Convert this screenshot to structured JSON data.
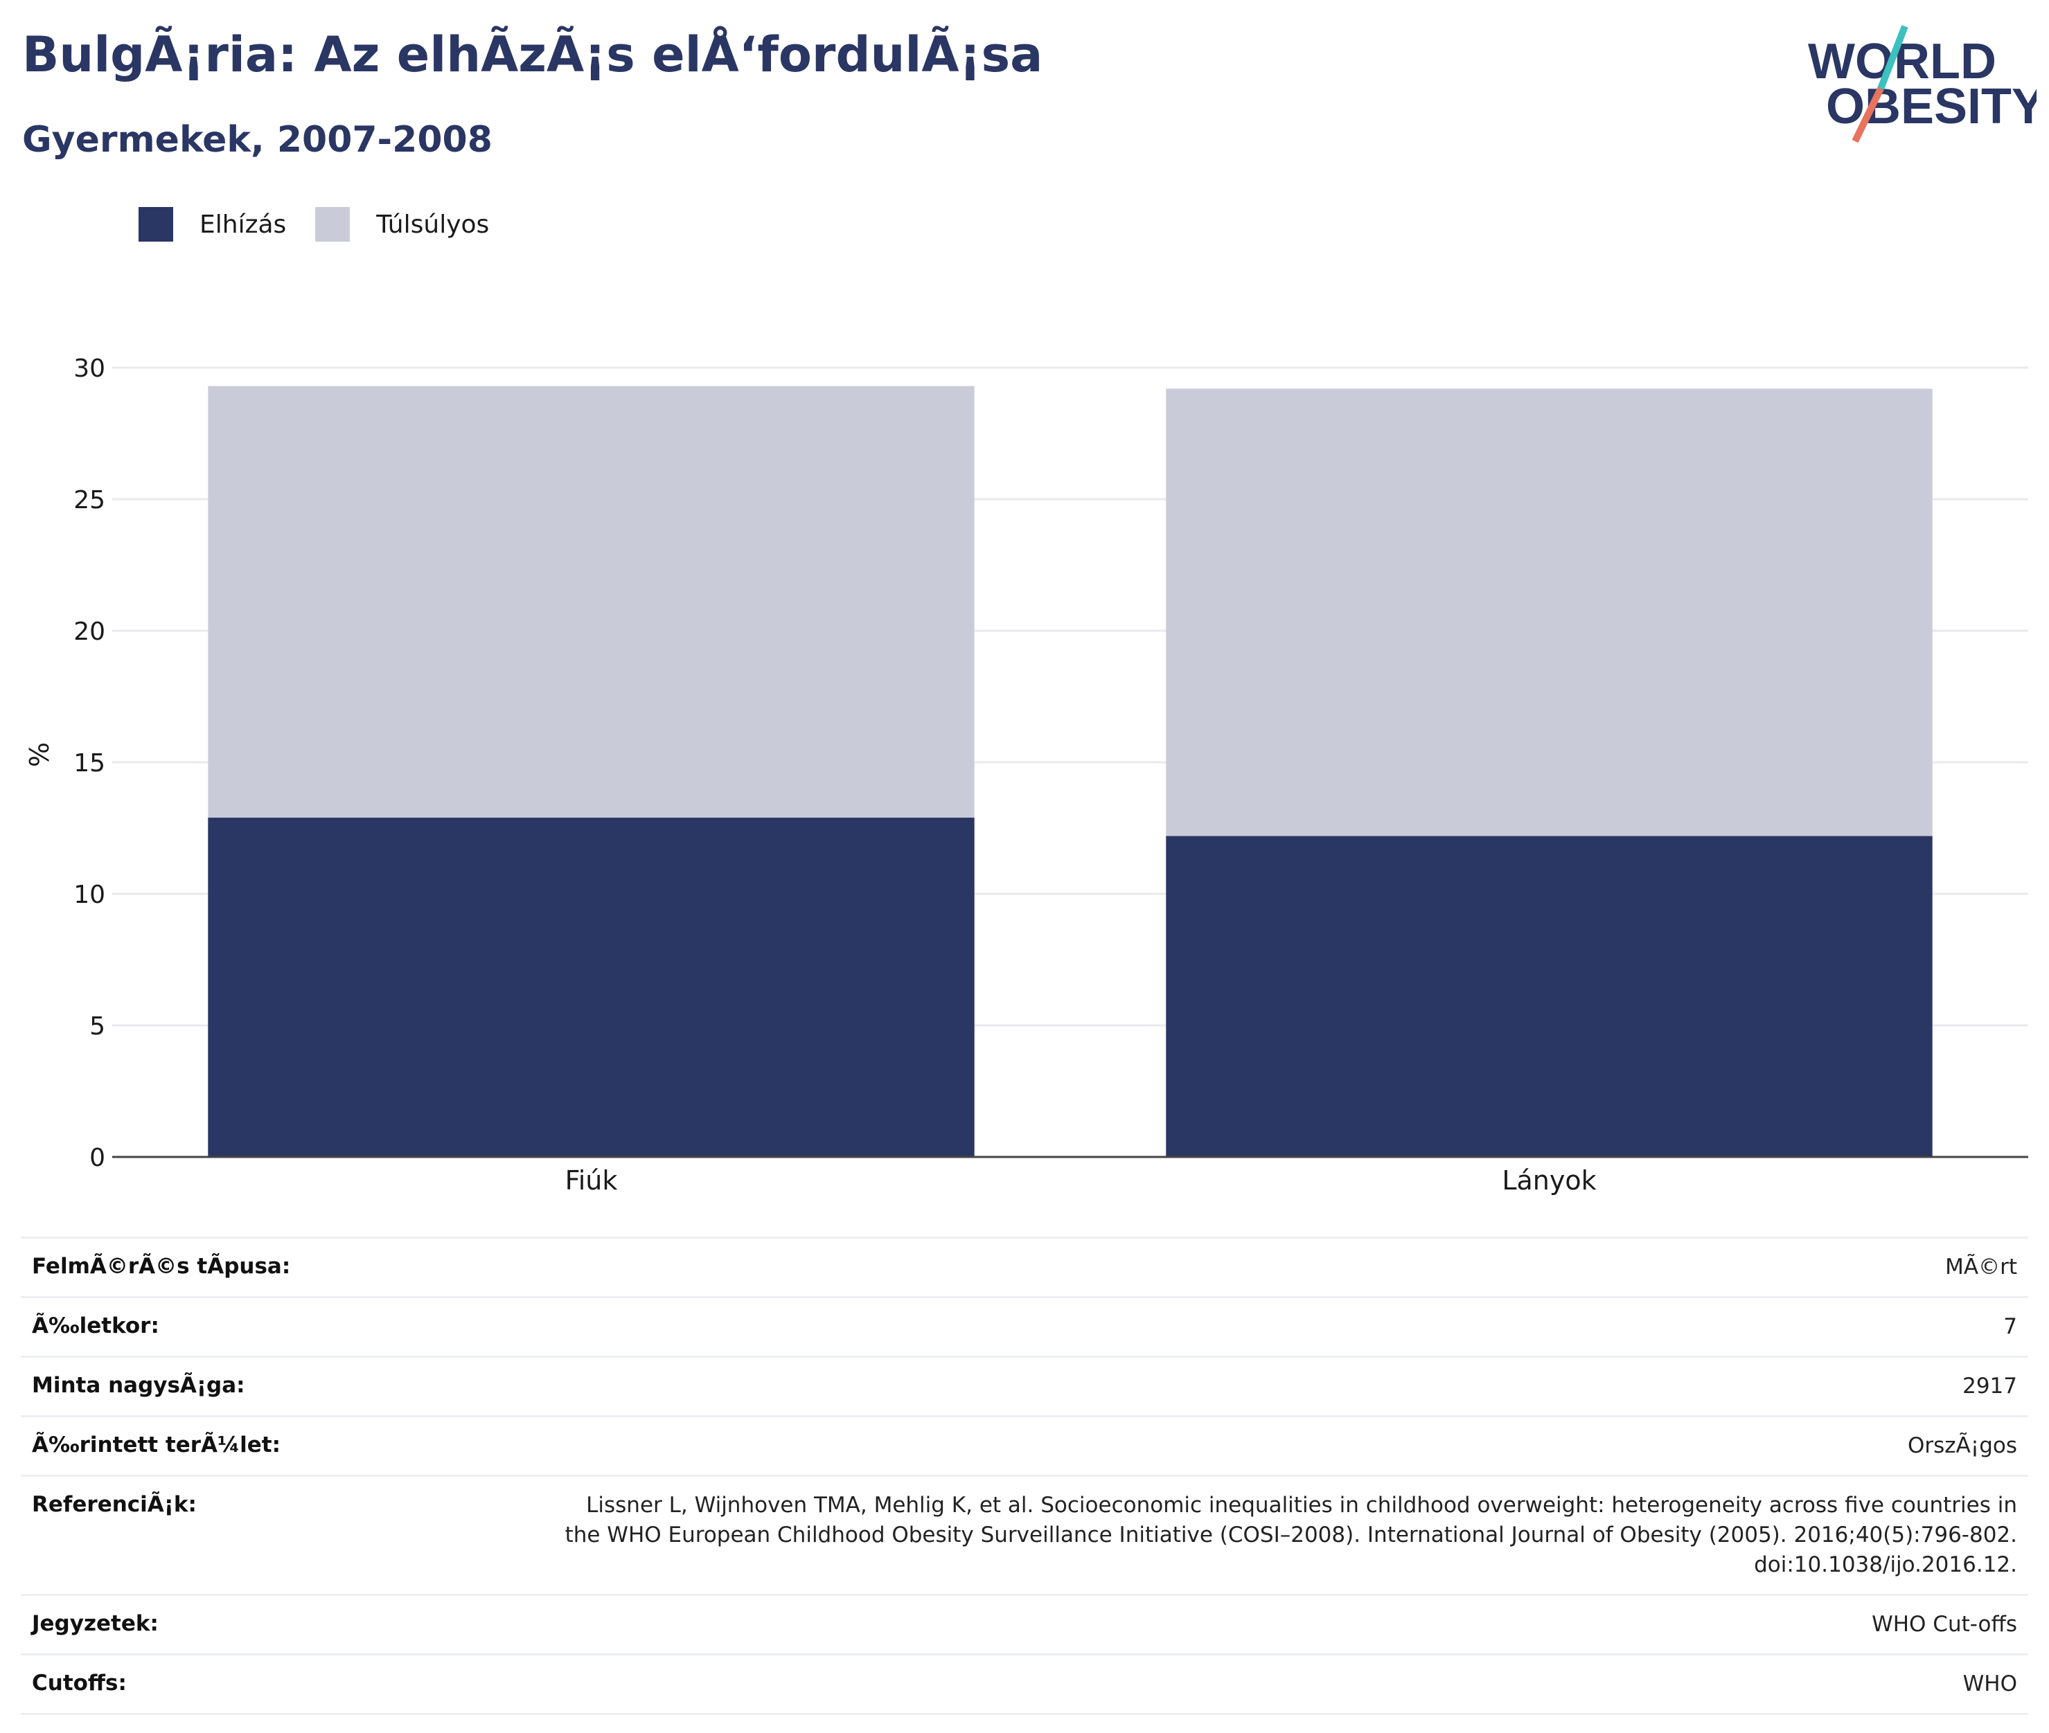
{
  "header": {
    "title": "BulgÃ¡ria: Az elhÃzÃ¡s elÅ‘fordulÃ¡sa",
    "subtitle": "Gyermekek, 2007-2008"
  },
  "logo": {
    "line1": "WORLD",
    "line2": "OBESITY",
    "colors": {
      "text": "#2a3663",
      "slash_top": "#3cc0c0",
      "slash_bottom": "#e8735e"
    }
  },
  "legend": [
    {
      "label": "Elhízás",
      "color": "#2a3663"
    },
    {
      "label": "Túlsúlyos",
      "color": "#c9ccd8"
    }
  ],
  "chart_data": {
    "type": "bar",
    "stacked": true,
    "categories": [
      "Fiúk",
      "Lányok"
    ],
    "series": [
      {
        "name": "Elhízás",
        "values": [
          12.9,
          12.2
        ],
        "color": "#2a3663"
      },
      {
        "name": "Túlsúlyos",
        "values": [
          16.4,
          17.0
        ],
        "color": "#c9ccd8"
      }
    ],
    "ylabel": "%",
    "ylim": [
      0,
      30
    ],
    "yticks": [
      0,
      5,
      10,
      15,
      20,
      25,
      30
    ],
    "grid": true,
    "legend_position": "top-left"
  },
  "info": [
    {
      "label": "FelmÃ©rÃ©s tÃpusa:",
      "value": "MÃ©rt"
    },
    {
      "label": "Ã‰letkor:",
      "value": "7"
    },
    {
      "label": "Minta nagysÃ¡ga:",
      "value": "2917"
    },
    {
      "label": "Ã‰rintett terÃ¼let:",
      "value": "OrszÃ¡gos"
    },
    {
      "label": "ReferenciÃ¡k:",
      "value": "Lissner L, Wijnhoven TMA, Mehlig K, et al. Socioeconomic inequalities in childhood overweight: heterogeneity across five countries in the WHO European Childhood Obesity Surveillance Initiative (COSI–2008). International Journal of Obesity (2005). 2016;40(5):796-802. doi:10.1038/ijo.2016.12."
    },
    {
      "label": "Jegyzetek:",
      "value": "WHO Cut-offs"
    },
    {
      "label": "Cutoffs:",
      "value": "WHO"
    }
  ]
}
